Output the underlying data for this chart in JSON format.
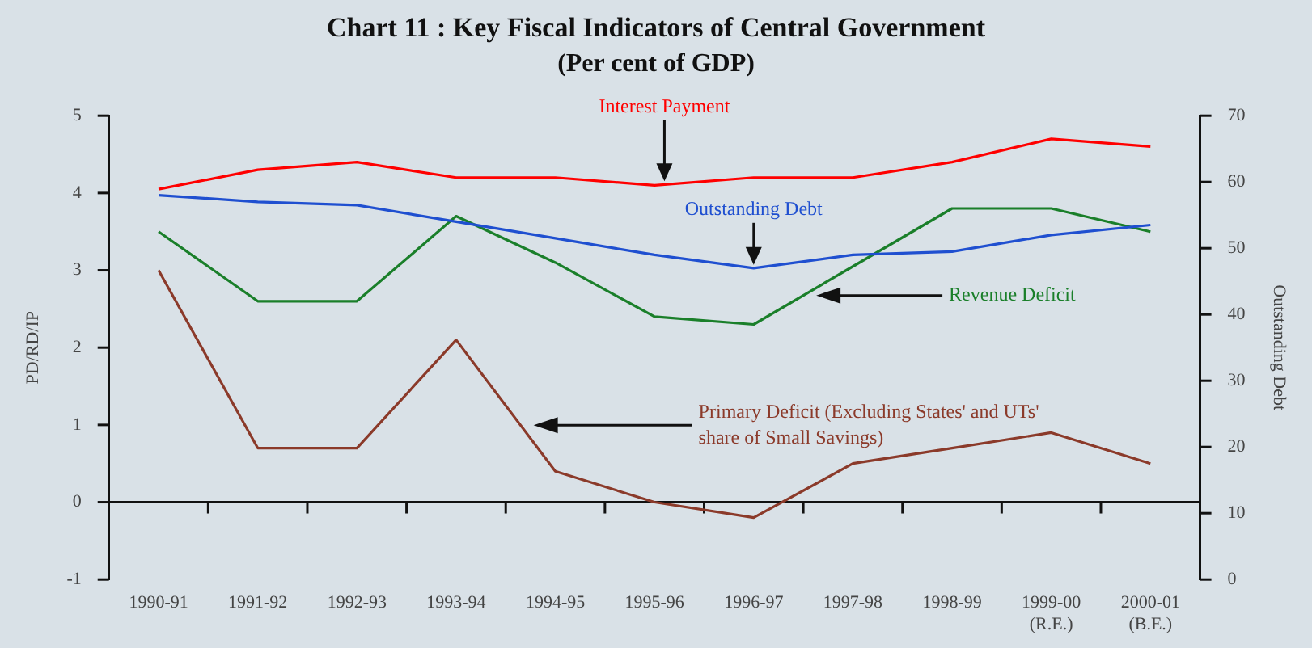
{
  "chart_data": {
    "type": "line",
    "title": "Chart 11 : Key Fiscal Indicators of Central Government",
    "subtitle": "(Per cent of GDP)",
    "categories": [
      "1990-91",
      "1991-92",
      "1992-93",
      "1993-94",
      "1994-95",
      "1995-96",
      "1996-97",
      "1997-98",
      "1998-99",
      "1999-00 (R.E.)",
      "2000-01 (B.E.)"
    ],
    "series": [
      {
        "name": "Interest Payment",
        "color": "#ff0000",
        "values": [
          4.05,
          4.3,
          4.4,
          4.2,
          4.2,
          4.1,
          4.2,
          4.2,
          4.4,
          4.7,
          4.6
        ]
      },
      {
        "name": "Outstanding Debt",
        "color": "#1f4fd0",
        "axis": "y2",
        "values": [
          58,
          57,
          56.5,
          54,
          51.5,
          49,
          47,
          49,
          49.5,
          52,
          53.5
        ]
      },
      {
        "name": "Revenue Deficit",
        "color": "#1a7f2a",
        "values": [
          3.5,
          2.6,
          2.6,
          3.7,
          3.1,
          2.4,
          2.3,
          3.05,
          3.8,
          3.8,
          3.5
        ]
      },
      {
        "name": "Primary Deficit (Excluding States' and UTs' share of Small Savings)",
        "color": "#8b3a2a",
        "values": [
          3.0,
          0.7,
          0.7,
          2.1,
          0.4,
          0.0,
          -0.2,
          0.5,
          0.7,
          0.9,
          0.5
        ]
      }
    ],
    "ylabel": "PD/RD/IP",
    "y2label": "Outstanding Debt",
    "ylim": [
      -1,
      5
    ],
    "yticks": [
      -1,
      0,
      1,
      2,
      3,
      4,
      5
    ],
    "y2lim": [
      0,
      70
    ],
    "y2ticks": [
      0,
      10,
      20,
      30,
      40,
      50,
      60,
      70
    ],
    "ref_lines": [
      {
        "axis": "y",
        "value": 0,
        "color": "#111111",
        "line_style": "solid"
      }
    ],
    "grid": false,
    "legend": false,
    "marker": "none",
    "line_style": "solid"
  }
}
